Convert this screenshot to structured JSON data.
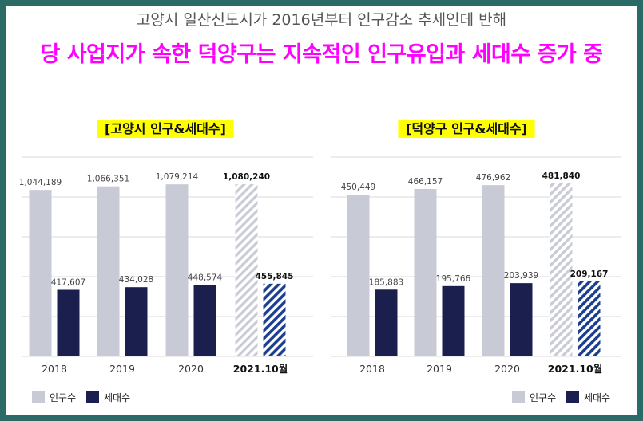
{
  "header": {
    "subtitle": "고양시 일산신도시가 2016년부터 인구감소 추세인데 반해",
    "headline": "당 사업지가 속한 덕양구는 지속적인 인구유입과 세대수 증가 중"
  },
  "colors": {
    "frame": "#2a6a67",
    "headline": "#ff00ff",
    "title_highlight": "#ffff00",
    "population": "#c8cad6",
    "households": "#1b1f4e",
    "population_hatch": "#c8cad6",
    "households_hatch": "#1c3f8f"
  },
  "legend": {
    "population": "인구수",
    "households": "세대수"
  },
  "chart_data": [
    {
      "type": "bar",
      "title": "[고양시 인구&세대수]",
      "categories": [
        "2018",
        "2019",
        "2020",
        "2021.10월"
      ],
      "series": [
        {
          "name": "인구수",
          "values": [
            1044189,
            1066351,
            1079214,
            1080240
          ],
          "labels": [
            "1,044,189",
            "1,066,351",
            "1,079,214",
            "1,080,240"
          ]
        },
        {
          "name": "세대수",
          "values": [
            417607,
            434028,
            448574,
            455845
          ],
          "labels": [
            "417,607",
            "434,028",
            "448,574",
            "455,845"
          ]
        }
      ],
      "highlighted_category": "2021.10월",
      "grid": true,
      "legend_position": "bottom-left"
    },
    {
      "type": "bar",
      "title": "[덕양구 인구&세대수]",
      "categories": [
        "2018",
        "2019",
        "2020",
        "2021.10월"
      ],
      "series": [
        {
          "name": "인구수",
          "values": [
            450449,
            466157,
            476962,
            481840
          ],
          "labels": [
            "450,449",
            "466,157",
            "476,962",
            "481,840"
          ]
        },
        {
          "name": "세대수",
          "values": [
            185883,
            195766,
            203939,
            209167
          ],
          "labels": [
            "185,883",
            "195,766",
            "203,939",
            "209,167"
          ]
        }
      ],
      "highlighted_category": "2021.10월",
      "grid": true,
      "legend_position": "bottom-right"
    }
  ]
}
